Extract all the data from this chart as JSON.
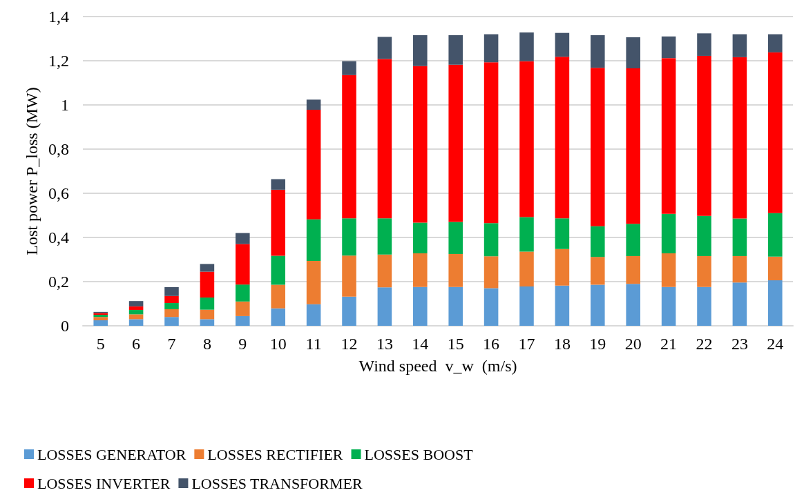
{
  "chart_data": {
    "type": "bar",
    "stacked": true,
    "xlabel": "Wind speed  v_w  (m/s)",
    "ylabel": "Lost power P_loss (MW)",
    "categories": [
      "5",
      "6",
      "7",
      "8",
      "9",
      "10",
      "11",
      "12",
      "13",
      "14",
      "15",
      "16",
      "17",
      "18",
      "19",
      "20",
      "21",
      "22",
      "23",
      "24"
    ],
    "ylim": [
      0,
      1.4
    ],
    "yticks": [
      0,
      {
        "value": 0.2,
        "label": "0,2"
      },
      {
        "value": 0.4,
        "label": "0,4"
      },
      {
        "value": 0.6,
        "label": "0,6"
      },
      {
        "value": 0.8,
        "label": "0,8"
      },
      1,
      {
        "value": 1.2,
        "label": "1,2"
      },
      {
        "value": 1.4,
        "label": "1,4"
      }
    ],
    "grid": "y",
    "legend": "bottom",
    "series": [
      {
        "name": "LOSSES GENERATOR",
        "color": "#5b9bd5",
        "values": [
          0.025,
          0.03,
          0.04,
          0.03,
          0.044,
          0.079,
          0.098,
          0.132,
          0.174,
          0.176,
          0.176,
          0.17,
          0.178,
          0.182,
          0.186,
          0.19,
          0.176,
          0.176,
          0.196,
          0.206
        ]
      },
      {
        "name": "LOSSES RECTIFIER",
        "color": "#ed7d31",
        "values": [
          0.015,
          0.022,
          0.035,
          0.043,
          0.066,
          0.107,
          0.196,
          0.186,
          0.149,
          0.152,
          0.149,
          0.145,
          0.158,
          0.166,
          0.126,
          0.126,
          0.152,
          0.14,
          0.12,
          0.107
        ]
      },
      {
        "name": "LOSSES BOOST",
        "color": "#00b050",
        "values": [
          0.01,
          0.02,
          0.028,
          0.055,
          0.077,
          0.131,
          0.188,
          0.169,
          0.164,
          0.139,
          0.145,
          0.15,
          0.156,
          0.139,
          0.139,
          0.146,
          0.179,
          0.182,
          0.17,
          0.197
        ]
      },
      {
        "name": "LOSSES INVERTER",
        "color": "#ff0000",
        "values": [
          0.008,
          0.016,
          0.032,
          0.117,
          0.183,
          0.299,
          0.496,
          0.648,
          0.721,
          0.709,
          0.712,
          0.728,
          0.706,
          0.731,
          0.717,
          0.704,
          0.705,
          0.724,
          0.73,
          0.728
        ]
      },
      {
        "name": "LOSSES TRANSFORMER",
        "color": "#44546a",
        "values": [
          0.005,
          0.024,
          0.04,
          0.035,
          0.05,
          0.048,
          0.046,
          0.063,
          0.1,
          0.14,
          0.134,
          0.127,
          0.13,
          0.108,
          0.148,
          0.14,
          0.098,
          0.102,
          0.104,
          0.082
        ]
      }
    ]
  }
}
